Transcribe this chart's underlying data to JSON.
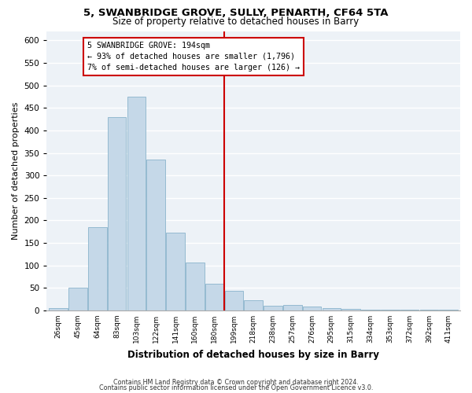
{
  "title1": "5, SWANBRIDGE GROVE, SULLY, PENARTH, CF64 5TA",
  "title2": "Size of property relative to detached houses in Barry",
  "xlabel": "Distribution of detached houses by size in Barry",
  "ylabel": "Number of detached properties",
  "categories": [
    "26sqm",
    "45sqm",
    "64sqm",
    "83sqm",
    "103sqm",
    "122sqm",
    "141sqm",
    "160sqm",
    "180sqm",
    "199sqm",
    "218sqm",
    "238sqm",
    "257sqm",
    "276sqm",
    "295sqm",
    "315sqm",
    "334sqm",
    "353sqm",
    "372sqm",
    "392sqm",
    "411sqm"
  ],
  "values": [
    5,
    50,
    185,
    430,
    475,
    335,
    172,
    107,
    60,
    44,
    23,
    10,
    12,
    8,
    5,
    3,
    2,
    1,
    2,
    1,
    2
  ],
  "bar_color": "#c5d8e8",
  "bar_edge_color": "#8ab4cc",
  "annotation_line1": "5 SWANBRIDGE GROVE: 194sqm",
  "annotation_line2": "← 93% of detached houses are smaller (1,796)",
  "annotation_line3": "7% of semi-detached houses are larger (126) →",
  "vline_color": "#cc0000",
  "annotation_box_color": "#cc0000",
  "background_color": "#edf2f7",
  "ylim": [
    0,
    620
  ],
  "yticks": [
    0,
    50,
    100,
    150,
    200,
    250,
    300,
    350,
    400,
    450,
    500,
    550,
    600
  ],
  "footer1": "Contains HM Land Registry data © Crown copyright and database right 2024.",
  "footer2": "Contains public sector information licensed under the Open Government Licence v3.0."
}
